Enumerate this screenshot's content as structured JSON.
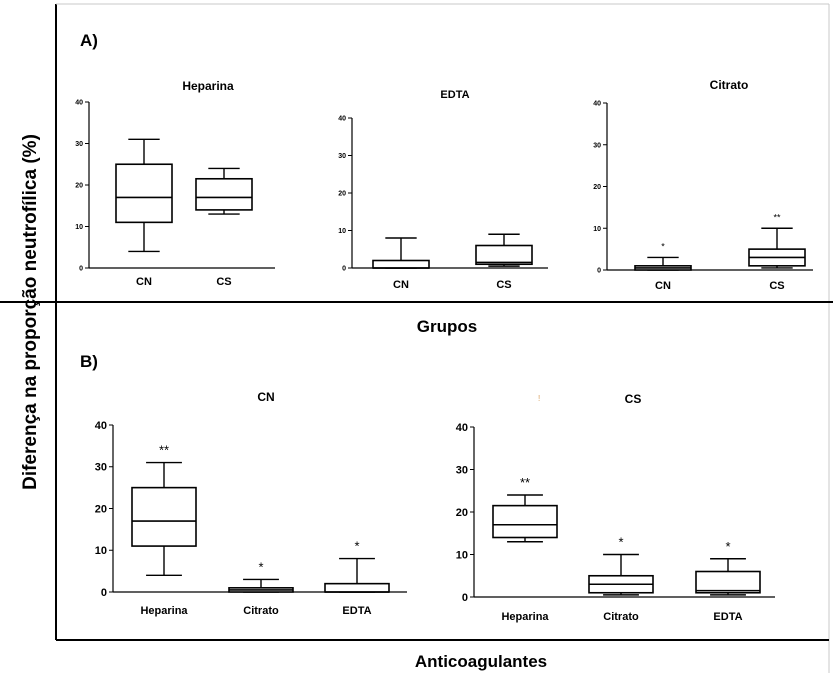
{
  "figure": {
    "ylabel": "Diferença na proporção neutrofílica (%)",
    "panel_a_label": "A)",
    "panel_b_label": "B)",
    "panel_a_xlabel": "Grupos",
    "panel_b_xlabel": "Anticoagulantes",
    "stray_mark": "!"
  },
  "chart_data": [
    {
      "type": "box",
      "panel": "A",
      "title": "Heparina",
      "ylim": [
        0,
        40
      ],
      "yticks": [
        0,
        10,
        20,
        30,
        40
      ],
      "categories": [
        "CN",
        "CS"
      ],
      "boxes": [
        {
          "min": 4,
          "q1": 11,
          "median": 17,
          "q3": 25,
          "max": 31,
          "sig": ""
        },
        {
          "min": 13,
          "q1": 14,
          "median": 17,
          "q3": 21.5,
          "max": 24,
          "sig": ""
        }
      ]
    },
    {
      "type": "box",
      "panel": "A",
      "title": "EDTA",
      "ylim": [
        0,
        40
      ],
      "yticks": [
        0,
        10,
        20,
        30,
        40
      ],
      "categories": [
        "CN",
        "CS"
      ],
      "boxes": [
        {
          "min": 0,
          "q1": 0,
          "median": 0,
          "q3": 2,
          "max": 8,
          "sig": ""
        },
        {
          "min": 0.5,
          "q1": 1,
          "median": 1.5,
          "q3": 6,
          "max": 9,
          "sig": ""
        }
      ]
    },
    {
      "type": "box",
      "panel": "A",
      "title": "Citrato",
      "ylim": [
        0,
        40
      ],
      "yticks": [
        0,
        10,
        20,
        30,
        40
      ],
      "categories": [
        "CN",
        "CS"
      ],
      "boxes": [
        {
          "min": 0,
          "q1": 0,
          "median": 0.5,
          "q3": 1,
          "max": 3,
          "sig": "*"
        },
        {
          "min": 0.5,
          "q1": 1,
          "median": 3,
          "q3": 5,
          "max": 10,
          "sig": "**"
        }
      ]
    },
    {
      "type": "box",
      "panel": "B",
      "title": "CN",
      "ylim": [
        0,
        40
      ],
      "yticks": [
        0,
        10,
        20,
        30,
        40
      ],
      "categories": [
        "Heparina",
        "Citrato",
        "EDTA"
      ],
      "boxes": [
        {
          "min": 4,
          "q1": 11,
          "median": 17,
          "q3": 25,
          "max": 31,
          "sig": "**"
        },
        {
          "min": 0,
          "q1": 0,
          "median": 0.5,
          "q3": 1,
          "max": 3,
          "sig": "*"
        },
        {
          "min": 0,
          "q1": 0,
          "median": 0,
          "q3": 2,
          "max": 8,
          "sig": "*"
        }
      ]
    },
    {
      "type": "box",
      "panel": "B",
      "title": "CS",
      "ylim": [
        0,
        40
      ],
      "yticks": [
        0,
        10,
        20,
        30,
        40
      ],
      "categories": [
        "Heparina",
        "Citrato",
        "EDTA"
      ],
      "boxes": [
        {
          "min": 13,
          "q1": 14,
          "median": 17,
          "q3": 21.5,
          "max": 24,
          "sig": "**"
        },
        {
          "min": 0.5,
          "q1": 1,
          "median": 3,
          "q3": 5,
          "max": 10,
          "sig": "*"
        },
        {
          "min": 0.5,
          "q1": 1,
          "median": 1.5,
          "q3": 6,
          "max": 9,
          "sig": "*"
        }
      ]
    }
  ]
}
